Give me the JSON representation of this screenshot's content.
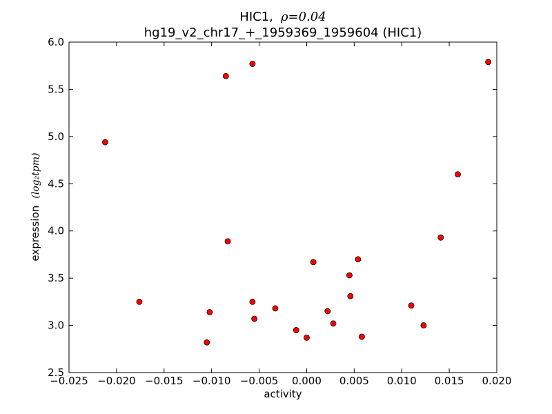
{
  "chart_data": {
    "type": "scatter",
    "title_line1_text": "HIC1,",
    "title_line1_rho": "ρ=0.04",
    "title_line2": "hg19_v2_chr17_+_1959369_1959604 (HIC1)",
    "xlabel": "activity",
    "ylabel_text": "expression",
    "ylabel_unit": "(log₂tpm)",
    "xlim": [
      -0.025,
      0.02
    ],
    "ylim": [
      2.5,
      6.0
    ],
    "x_ticks": [
      -0.025,
      -0.02,
      -0.015,
      -0.01,
      -0.005,
      0.0,
      0.005,
      0.01,
      0.015,
      0.02
    ],
    "x_tick_labels": [
      "−0.025",
      "−0.020",
      "−0.015",
      "−0.010",
      "−0.005",
      "0.000",
      "0.005",
      "0.010",
      "0.015",
      "0.020"
    ],
    "y_ticks": [
      2.5,
      3.0,
      3.5,
      4.0,
      4.5,
      5.0,
      5.5,
      6.0
    ],
    "y_tick_labels": [
      "2.5",
      "3.0",
      "3.5",
      "4.0",
      "4.5",
      "5.0",
      "5.5",
      "6.0"
    ],
    "grid": false,
    "marker_color": "#ff0000",
    "marker_edge_color": "#000000",
    "points": [
      {
        "x": -0.0212,
        "y": 4.94
      },
      {
        "x": -0.0176,
        "y": 3.25
      },
      {
        "x": -0.0105,
        "y": 2.82
      },
      {
        "x": -0.0102,
        "y": 3.14
      },
      {
        "x": -0.0085,
        "y": 5.64
      },
      {
        "x": -0.0083,
        "y": 3.89
      },
      {
        "x": -0.0057,
        "y": 5.77
      },
      {
        "x": -0.0057,
        "y": 3.25
      },
      {
        "x": -0.0055,
        "y": 3.07
      },
      {
        "x": -0.0033,
        "y": 3.18
      },
      {
        "x": -0.0011,
        "y": 2.95
      },
      {
        "x": 0.0,
        "y": 2.87
      },
      {
        "x": 0.0007,
        "y": 3.67
      },
      {
        "x": 0.0022,
        "y": 3.15
      },
      {
        "x": 0.0028,
        "y": 3.02
      },
      {
        "x": 0.0045,
        "y": 3.53
      },
      {
        "x": 0.0046,
        "y": 3.31
      },
      {
        "x": 0.0054,
        "y": 3.7
      },
      {
        "x": 0.0058,
        "y": 2.88
      },
      {
        "x": 0.011,
        "y": 3.21
      },
      {
        "x": 0.0123,
        "y": 3.0
      },
      {
        "x": 0.0141,
        "y": 3.93
      },
      {
        "x": 0.0159,
        "y": 4.6
      },
      {
        "x": 0.0191,
        "y": 5.79
      }
    ]
  }
}
